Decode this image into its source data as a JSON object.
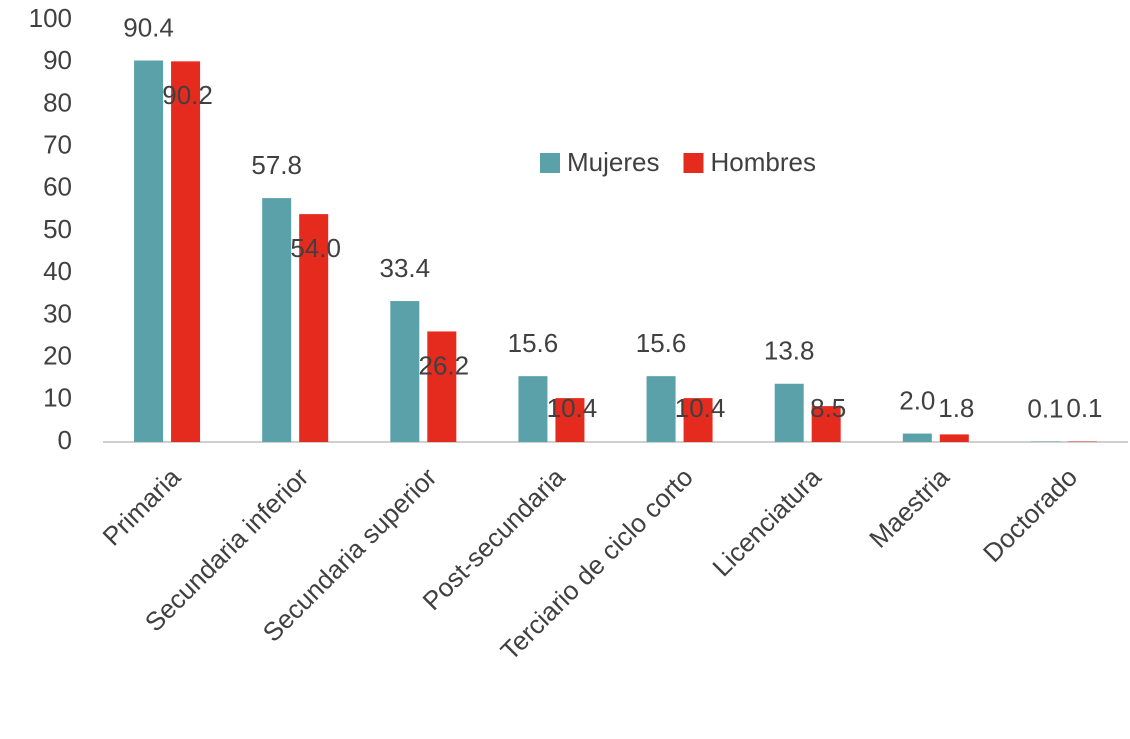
{
  "chart_data": {
    "type": "bar",
    "categories": [
      "Primaria",
      "Secundaria inferior",
      "Secundaria superior",
      "Post-secundaria",
      "Terciario de ciclo corto",
      "Licenciatura",
      "Maestria",
      "Doctorado"
    ],
    "series": [
      {
        "name": "Mujeres",
        "color": "#5ba1a9",
        "values": [
          90.4,
          57.8,
          33.4,
          15.6,
          15.6,
          13.8,
          2.0,
          0.1
        ],
        "value_labels": [
          "90.4",
          "57.8",
          "33.4",
          "15.6",
          "15.6",
          "13.8",
          "2.0",
          "0.1"
        ]
      },
      {
        "name": "Hombres",
        "color": "#e52b1e",
        "values": [
          90.2,
          54.0,
          26.2,
          10.4,
          10.4,
          8.5,
          1.8,
          0.1
        ],
        "value_labels": [
          "90.2",
          "54.0",
          "26.2",
          "10.4",
          "10.4",
          "8.5",
          "1.8",
          "0.1"
        ]
      }
    ],
    "ylim": [
      0,
      100
    ],
    "yticks": [
      0,
      10,
      20,
      30,
      40,
      50,
      60,
      70,
      80,
      90,
      100
    ]
  }
}
